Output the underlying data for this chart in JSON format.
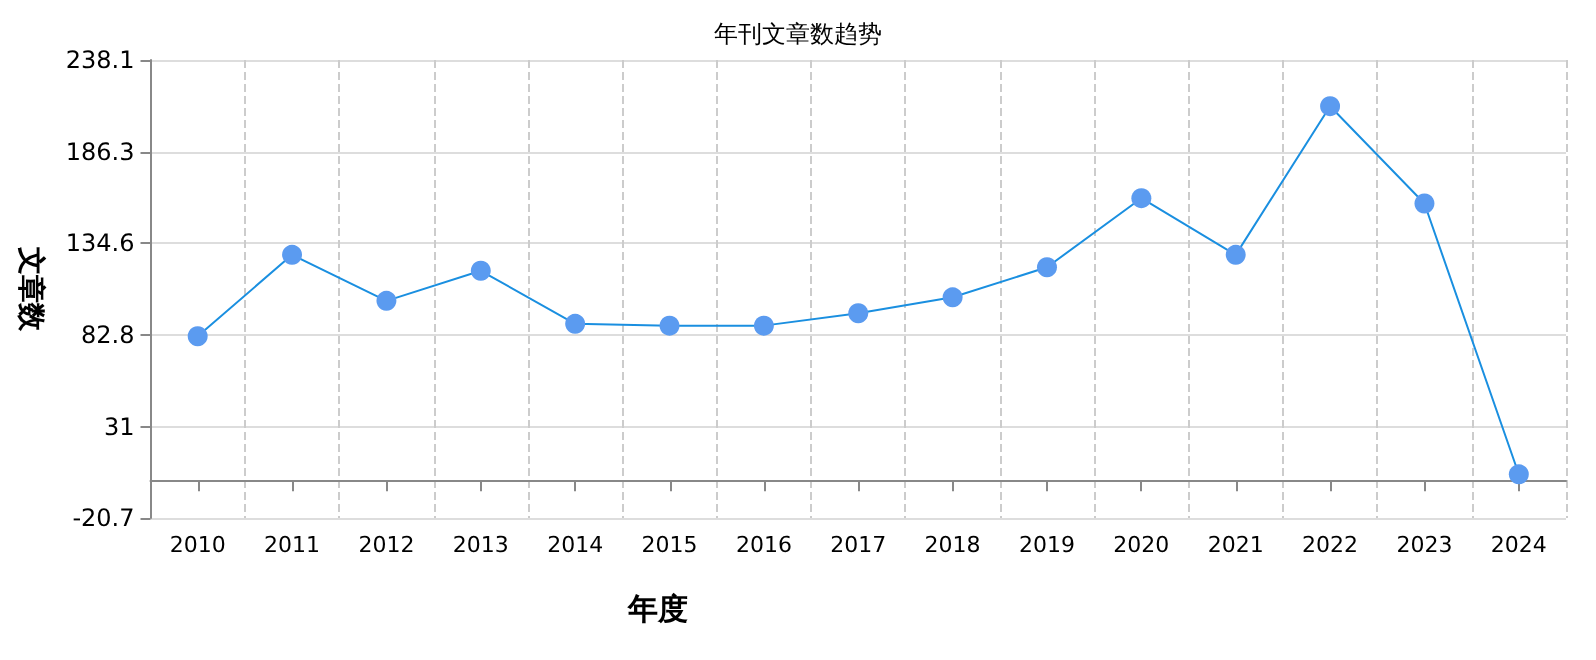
{
  "chart_data": {
    "type": "line",
    "title": "年刊文章数趋势",
    "xlabel": "年度",
    "ylabel": "文章数",
    "categories": [
      "2010",
      "2011",
      "2012",
      "2013",
      "2014",
      "2015",
      "2016",
      "2017",
      "2018",
      "2019",
      "2020",
      "2021",
      "2022",
      "2023",
      "2024"
    ],
    "series": [
      {
        "color": "#5b9bf0",
        "values": [
          82,
          128,
          102,
          119,
          89,
          88,
          88,
          95,
          104,
          121,
          160,
          128,
          212,
          157,
          4
        ]
      }
    ],
    "ylim": [
      -20.7,
      238.1
    ],
    "yticks": [
      -20.7,
      31.0,
      82.8,
      134.6,
      186.3,
      238.1
    ],
    "grid": true,
    "marker": "circle",
    "line_style": "solid"
  }
}
